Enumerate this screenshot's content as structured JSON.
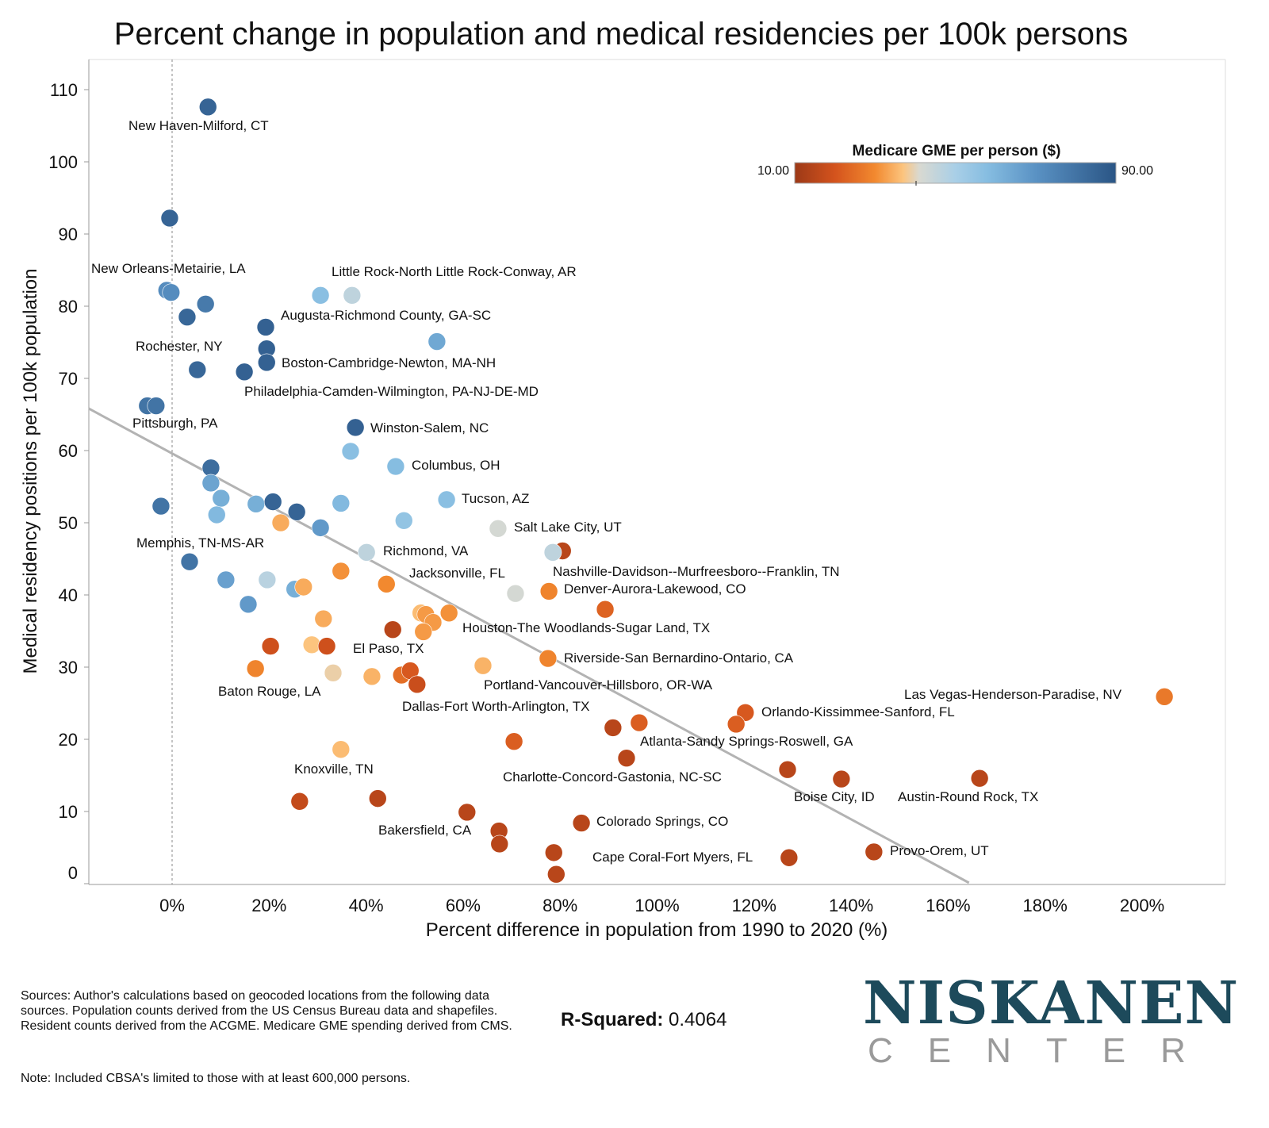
{
  "chart_data": {
    "type": "scatter",
    "title": "Percent change in population and medical residencies per 100k persons",
    "xlabel": "Percent difference in population from 1990 to 2020 (%)",
    "ylabel": "Medical residency positions per 100k population",
    "xlim": [
      -17,
      217
    ],
    "ylim": [
      0,
      113
    ],
    "xticks": [
      "0%",
      "20%",
      "40%",
      "60%",
      "80%",
      "100%",
      "120%",
      "140%",
      "160%",
      "180%",
      "200%"
    ],
    "xtick_values": [
      0,
      20,
      40,
      60,
      80,
      100,
      120,
      140,
      160,
      180,
      200
    ],
    "yticks": [
      "0",
      "10",
      "20",
      "30",
      "40",
      "50",
      "60",
      "70",
      "80",
      "90",
      "100",
      "110"
    ],
    "ytick_values": [
      0,
      10,
      20,
      30,
      40,
      50,
      60,
      70,
      80,
      90,
      100,
      110
    ],
    "reference_line_x": 0,
    "trendline": {
      "intercept": 59.6,
      "slope": -0.362,
      "x_range": [
        -17.2,
        164.3
      ]
    },
    "legend": {
      "title": "Medicare GME per person ($)",
      "min_label": "10.00",
      "max_label": "90.00",
      "min": 10,
      "max": 90,
      "placement": "top-right"
    },
    "color_stops": [
      [
        10,
        "#9c3917"
      ],
      [
        20,
        "#d4531d"
      ],
      [
        30,
        "#f2892f"
      ],
      [
        37,
        "#fcc47e"
      ],
      [
        41,
        "#d9d9d1"
      ],
      [
        50,
        "#a9cfe7"
      ],
      [
        58,
        "#86bde1"
      ],
      [
        70,
        "#5a92c4"
      ],
      [
        90,
        "#2a5585"
      ]
    ],
    "points": [
      {
        "x": 7.4,
        "y": 107.6,
        "gme": 85
      },
      {
        "x": -0.5,
        "y": 92.2,
        "gme": 85
      },
      {
        "x": -1.1,
        "y": 82.2,
        "gme": 72
      },
      {
        "x": -0.2,
        "y": 81.9,
        "gme": 72
      },
      {
        "x": 3.1,
        "y": 78.5,
        "gme": 84
      },
      {
        "x": 6.9,
        "y": 80.3,
        "gme": 78
      },
      {
        "x": 30.6,
        "y": 81.5,
        "gme": 57
      },
      {
        "x": 37.1,
        "y": 81.5,
        "gme": 46
      },
      {
        "x": 19.3,
        "y": 77.1,
        "gme": 86
      },
      {
        "x": 19.5,
        "y": 74.1,
        "gme": 86
      },
      {
        "x": 19.5,
        "y": 72.2,
        "gme": 86
      },
      {
        "x": 54.6,
        "y": 75.1,
        "gme": 64
      },
      {
        "x": 5.2,
        "y": 71.2,
        "gme": 84
      },
      {
        "x": 14.9,
        "y": 70.9,
        "gme": 86
      },
      {
        "x": -5.1,
        "y": 66.2,
        "gme": 80
      },
      {
        "x": -3.3,
        "y": 66.2,
        "gme": 80
      },
      {
        "x": 37.8,
        "y": 63.2,
        "gme": 86
      },
      {
        "x": 36.8,
        "y": 59.9,
        "gme": 57
      },
      {
        "x": 46.1,
        "y": 57.8,
        "gme": 58
      },
      {
        "x": 8.0,
        "y": 57.6,
        "gme": 82
      },
      {
        "x": 8.0,
        "y": 55.5,
        "gme": 65
      },
      {
        "x": 10.1,
        "y": 53.4,
        "gme": 62
      },
      {
        "x": -2.3,
        "y": 52.3,
        "gme": 80
      },
      {
        "x": 17.3,
        "y": 52.6,
        "gme": 62
      },
      {
        "x": 20.8,
        "y": 52.9,
        "gme": 85
      },
      {
        "x": 9.2,
        "y": 51.1,
        "gme": 59
      },
      {
        "x": 25.7,
        "y": 51.5,
        "gme": 85
      },
      {
        "x": 34.8,
        "y": 52.7,
        "gme": 59
      },
      {
        "x": 56.6,
        "y": 53.2,
        "gme": 57
      },
      {
        "x": 47.8,
        "y": 50.3,
        "gme": 55
      },
      {
        "x": 22.4,
        "y": 50.0,
        "gme": 34
      },
      {
        "x": 30.6,
        "y": 49.3,
        "gme": 68
      },
      {
        "x": 67.2,
        "y": 49.2,
        "gme": 42
      },
      {
        "x": 40.1,
        "y": 45.9,
        "gme": 46
      },
      {
        "x": 80.5,
        "y": 46.1,
        "gme": 15
      },
      {
        "x": 78.5,
        "y": 45.9,
        "gme": 46
      },
      {
        "x": 3.6,
        "y": 44.6,
        "gme": 80
      },
      {
        "x": 34.8,
        "y": 43.3,
        "gme": 31
      },
      {
        "x": 11.1,
        "y": 42.1,
        "gme": 66
      },
      {
        "x": 19.6,
        "y": 42.1,
        "gme": 47
      },
      {
        "x": 44.2,
        "y": 41.5,
        "gme": 30
      },
      {
        "x": 25.3,
        "y": 40.8,
        "gme": 62
      },
      {
        "x": 27.1,
        "y": 41.1,
        "gme": 34
      },
      {
        "x": 70.8,
        "y": 40.2,
        "gme": 42
      },
      {
        "x": 77.7,
        "y": 40.5,
        "gme": 29
      },
      {
        "x": 15.7,
        "y": 38.7,
        "gme": 68
      },
      {
        "x": 89.3,
        "y": 38.0,
        "gme": 23
      },
      {
        "x": 31.2,
        "y": 36.7,
        "gme": 34
      },
      {
        "x": 51.3,
        "y": 37.5,
        "gme": 36
      },
      {
        "x": 52.3,
        "y": 37.3,
        "gme": 32
      },
      {
        "x": 57.1,
        "y": 37.5,
        "gme": 31
      },
      {
        "x": 53.8,
        "y": 36.2,
        "gme": 32
      },
      {
        "x": 51.8,
        "y": 34.9,
        "gme": 32
      },
      {
        "x": 45.5,
        "y": 35.2,
        "gme": 15
      },
      {
        "x": 20.3,
        "y": 32.9,
        "gme": 19
      },
      {
        "x": 28.8,
        "y": 33.1,
        "gme": 37
      },
      {
        "x": 31.9,
        "y": 32.9,
        "gme": 19
      },
      {
        "x": 77.5,
        "y": 31.2,
        "gme": 29
      },
      {
        "x": 64.1,
        "y": 30.2,
        "gme": 35
      },
      {
        "x": 17.2,
        "y": 29.8,
        "gme": 29
      },
      {
        "x": 33.2,
        "y": 29.2,
        "gme": 39
      },
      {
        "x": 41.2,
        "y": 28.7,
        "gme": 35
      },
      {
        "x": 47.3,
        "y": 28.9,
        "gme": 25
      },
      {
        "x": 49.1,
        "y": 29.5,
        "gme": 21
      },
      {
        "x": 50.5,
        "y": 27.6,
        "gme": 18
      },
      {
        "x": 204.6,
        "y": 25.9,
        "gme": 27
      },
      {
        "x": 118.2,
        "y": 23.7,
        "gme": 21
      },
      {
        "x": 116.3,
        "y": 22.1,
        "gme": 22
      },
      {
        "x": 96.3,
        "y": 22.3,
        "gme": 22
      },
      {
        "x": 90.9,
        "y": 21.6,
        "gme": 15
      },
      {
        "x": 70.5,
        "y": 19.7,
        "gme": 22
      },
      {
        "x": 34.8,
        "y": 18.6,
        "gme": 36
      },
      {
        "x": 93.7,
        "y": 17.4,
        "gme": 15
      },
      {
        "x": 126.9,
        "y": 15.8,
        "gme": 15
      },
      {
        "x": 138.0,
        "y": 14.5,
        "gme": 15
      },
      {
        "x": 166.5,
        "y": 14.6,
        "gme": 15
      },
      {
        "x": 42.4,
        "y": 11.8,
        "gme": 15
      },
      {
        "x": 26.3,
        "y": 11.4,
        "gme": 17
      },
      {
        "x": 60.8,
        "y": 9.9,
        "gme": 15
      },
      {
        "x": 67.4,
        "y": 7.3,
        "gme": 15
      },
      {
        "x": 67.5,
        "y": 5.5,
        "gme": 15
      },
      {
        "x": 84.4,
        "y": 8.4,
        "gme": 15
      },
      {
        "x": 78.7,
        "y": 4.3,
        "gme": 15
      },
      {
        "x": 79.2,
        "y": 1.3,
        "gme": 15
      },
      {
        "x": 127.2,
        "y": 3.6,
        "gme": 15
      },
      {
        "x": 144.7,
        "y": 4.4,
        "gme": 15
      }
    ],
    "annotations": [
      "New Haven-Milford, CT",
      "New Orleans-Metairie, LA",
      "Little Rock-North Little Rock-Conway, AR",
      "Augusta-Richmond County, GA-SC",
      "Rochester, NY",
      "Boston-Cambridge-Newton, MA-NH",
      "Philadelphia-Camden-Wilmington, PA-NJ-DE-MD",
      "Pittsburgh, PA",
      "Winston-Salem, NC",
      "Columbus, OH",
      "Tucson, AZ",
      "Salt Lake City, UT",
      "Memphis, TN-MS-AR",
      "Richmond, VA",
      "Jacksonville, FL",
      "Nashville-Davidson--Murfreesboro--Franklin, TN",
      "Denver-Aurora-Lakewood, CO",
      "Houston-The Woodlands-Sugar Land, TX",
      "El Paso, TX",
      "Riverside-San Bernardino-Ontario, CA",
      "Portland-Vancouver-Hillsboro, OR-WA",
      "Baton Rouge, LA",
      "Las Vegas-Henderson-Paradise, NV",
      "Dallas-Fort Worth-Arlington, TX",
      "Orlando-Kissimmee-Sanford, FL",
      "Atlanta-Sandy Springs-Roswell, GA",
      "Knoxville, TN",
      "Charlotte-Concord-Gastonia, NC-SC",
      "Boise City, ID",
      "Austin-Round Rock, TX",
      "Colorado Springs, CO",
      "Bakersfield, CA",
      "Cape Coral-Fort Myers, FL",
      "Provo-Orem, UT"
    ]
  },
  "footer": {
    "sources": "Sources: Author's calculations based on geocoded locations from the following data sources. Population counts derived from the US Census Bureau data and shapefiles. Resident counts derived from the ACGME. Medicare GME spending derived from CMS.",
    "note": "Note: Included CBSA's limited to those with at least 600,000 persons.",
    "r_squared_label": "R-Squared:",
    "r_squared_value": "0.4064"
  },
  "logo": {
    "line1": "NISKANEN",
    "line2": "CENTER"
  }
}
